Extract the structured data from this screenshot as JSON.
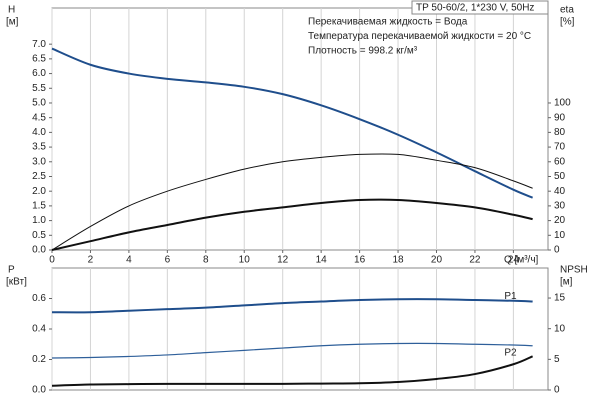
{
  "chart_data": [
    {
      "type": "line",
      "annotations": [
        "TP 50-60/2, 1*230 V, 50Hz",
        "Перекачиваемая жидкость = Вода",
        "Температура перекачиваемой жидкости = 20 °C",
        "Плотность = 998.2 кг/м³"
      ],
      "y_label": "H",
      "y_unit": "[м]",
      "y2_label": "eta",
      "y2_unit": "[%]",
      "x_label": "Q [м³/ч]",
      "x": [
        0,
        2,
        4,
        6,
        8,
        10,
        12,
        14,
        16,
        18,
        20,
        22,
        24,
        25
      ],
      "xlim": [
        0,
        25.8
      ],
      "xticks": [
        0,
        2,
        4,
        6,
        8,
        10,
        12,
        14,
        16,
        18,
        20,
        22,
        24
      ],
      "ylim": [
        0,
        8.23
      ],
      "yticks": [
        {
          "value": 0,
          "label": "0.0"
        },
        0.5,
        {
          "value": 1,
          "label": "1.0"
        },
        1.5,
        {
          "value": 2,
          "label": "2.0"
        },
        2.5,
        {
          "value": 3,
          "label": "3.0"
        },
        3.5,
        {
          "value": 4,
          "label": "4.0"
        },
        4.5,
        {
          "value": 5,
          "label": "5.0"
        },
        5.5,
        {
          "value": 6,
          "label": "6.0"
        },
        6.5,
        {
          "value": 7,
          "label": "7.0"
        }
      ],
      "y2lim": [
        0,
        164.6
      ],
      "y2ticks": [
        0,
        10,
        20,
        30,
        40,
        50,
        60,
        70,
        80,
        90,
        100
      ],
      "grid": true,
      "series": [
        {
          "color": "#1f4e8c",
          "width": 2,
          "values": [
            6.85,
            6.3,
            6.0,
            5.82,
            5.7,
            5.55,
            5.3,
            4.92,
            4.45,
            3.92,
            3.32,
            2.68,
            2.05,
            1.78
          ]
        },
        {
          "color": "#111111",
          "width": 1,
          "axis": "y2",
          "values": [
            0,
            16,
            30,
            40,
            48,
            55,
            60,
            63,
            65,
            65,
            61,
            56,
            47,
            42
          ]
        },
        {
          "color": "#111111",
          "width": 2,
          "axis": "y2",
          "values": [
            0,
            6,
            12,
            17,
            22,
            26,
            29,
            32,
            34,
            34,
            32,
            29,
            24,
            21
          ]
        }
      ]
    },
    {
      "type": "line",
      "y_label": "P",
      "y_unit": "[кВт]",
      "y2_label": "NPSH",
      "y2_unit": "[м]",
      "x": [
        0,
        2,
        4,
        6,
        8,
        10,
        12,
        14,
        16,
        18,
        20,
        22,
        24,
        25
      ],
      "xlim": [
        0,
        25.8
      ],
      "xticks": [
        0,
        2,
        4,
        6,
        8,
        10,
        12,
        14,
        16,
        18,
        20,
        22,
        24
      ],
      "ylim": [
        0,
        0.8
      ],
      "yticks": [
        {
          "value": 0,
          "label": "0.0"
        },
        0.2,
        0.4,
        0.6
      ],
      "y2lim": [
        0,
        19.9
      ],
      "y2ticks": [
        0,
        5,
        10,
        15
      ],
      "grid": true,
      "series": [
        {
          "name": "P1",
          "color": "#1f4e8c",
          "width": 2,
          "values": [
            0.51,
            0.51,
            0.52,
            0.53,
            0.54,
            0.555,
            0.57,
            0.58,
            0.59,
            0.595,
            0.595,
            0.59,
            0.585,
            0.58
          ]
        },
        {
          "name": "P2",
          "color": "#2e5f9a",
          "width": 1.2,
          "values": [
            0.21,
            0.213,
            0.22,
            0.23,
            0.245,
            0.26,
            0.275,
            0.29,
            0.3,
            0.305,
            0.305,
            0.3,
            0.295,
            0.29
          ]
        },
        {
          "color": "#111111",
          "width": 2,
          "axis": "y2",
          "values": [
            0.7,
            0.9,
            0.95,
            1.0,
            1.0,
            1.0,
            1.0,
            1.05,
            1.1,
            1.3,
            1.8,
            2.6,
            4.2,
            5.5
          ]
        }
      ]
    }
  ]
}
